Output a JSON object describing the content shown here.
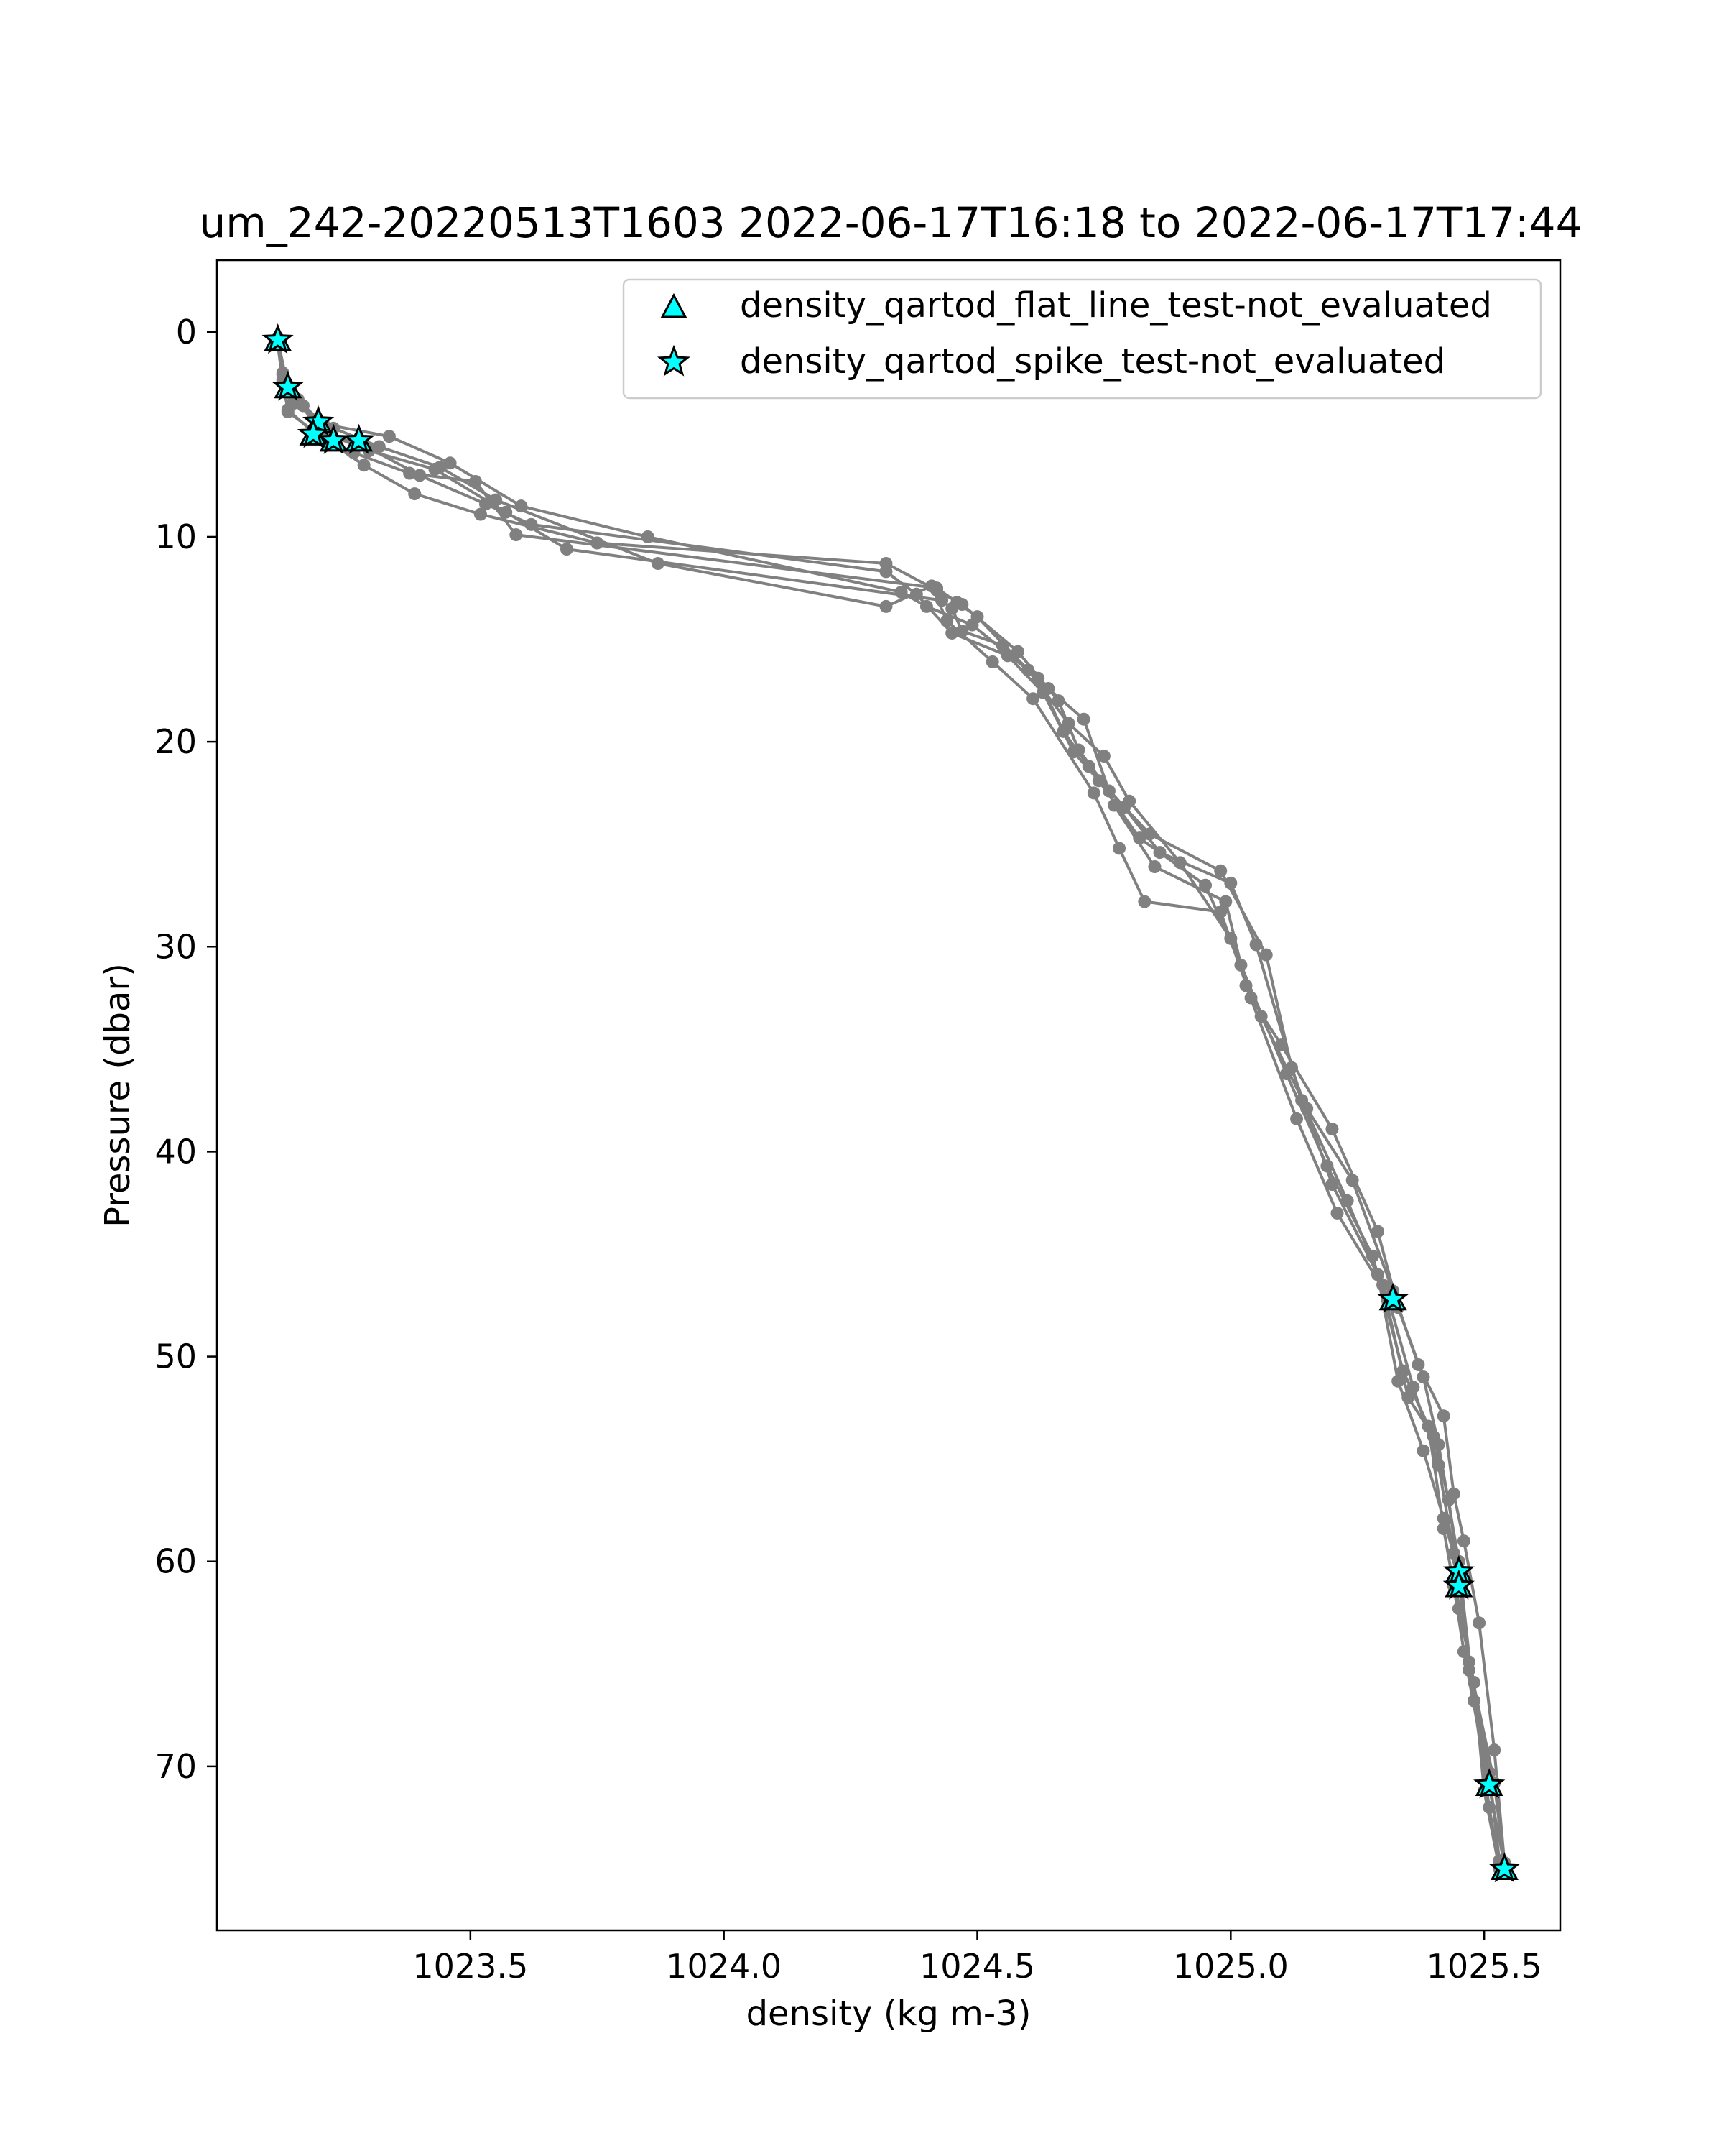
{
  "chart_data": {
    "type": "line",
    "title": "um_242-20220513T1603 2022-06-17T16:18 to 2022-06-17T17:44",
    "xlabel": "density (kg m-3)",
    "ylabel": "Pressure (dbar)",
    "xlim": [
      1023.0,
      1025.65
    ],
    "ylim": [
      78,
      -3.5
    ],
    "y_inverted": true,
    "xticks": [
      1023.5,
      1024.0,
      1024.5,
      1025.0,
      1025.5
    ],
    "xtick_labels": [
      "1023.5",
      "1024.0",
      "1024.5",
      "1025.0",
      "1025.5"
    ],
    "yticks": [
      0,
      10,
      20,
      30,
      40,
      50,
      60,
      70
    ],
    "ytick_labels": [
      "0",
      "10",
      "20",
      "30",
      "40",
      "50",
      "60",
      "70"
    ],
    "grid": false,
    "legend_position": "top-right",
    "colors": {
      "profile": "#808080",
      "marker_fill": "#00ffff",
      "marker_edge": "#000000"
    },
    "legend": [
      {
        "label": "density_qartod_flat_line_test-not_evaluated",
        "marker": "triangle"
      },
      {
        "label": "density_qartod_spike_test-not_evaluated",
        "marker": "star"
      }
    ],
    "series": [
      {
        "x": [
          1023.12,
          1023.13,
          1023.14,
          1023.2,
          1023.29,
          1023.39,
          1023.52,
          1023.75,
          1024.32,
          1024.42,
          1024.47,
          1024.58,
          1024.66,
          1024.7,
          1024.76,
          1024.84,
          1024.98,
          1025.07,
          1025.12,
          1025.2,
          1025.29,
          1025.33,
          1025.38,
          1025.42,
          1025.45,
          1025.47,
          1025.52,
          1025.54
        ],
        "y": [
          0.4,
          2.1,
          3.9,
          5.0,
          6.5,
          7.9,
          8.9,
          10.3,
          11.3,
          12.6,
          13.3,
          15.6,
          18.0,
          20.4,
          22.4,
          24.5,
          26.3,
          30.4,
          35.9,
          41.6,
          46.0,
          51.2,
          54.6,
          57.9,
          60.5,
          64.9,
          70.8,
          74.9
        ]
      },
      {
        "x": [
          1023.12,
          1023.13,
          1023.15,
          1023.21,
          1023.34,
          1023.46,
          1023.6,
          1023.85,
          1024.35,
          1024.4,
          1024.49,
          1024.62,
          1024.67,
          1024.72,
          1024.79,
          1024.86,
          1025.0,
          1025.05,
          1025.14,
          1025.23,
          1025.3,
          1025.35,
          1025.4,
          1025.43,
          1025.45,
          1025.47,
          1025.51,
          1025.53
        ],
        "y": [
          0.5,
          2.4,
          3.1,
          4.5,
          5.1,
          6.4,
          8.5,
          10.0,
          12.7,
          13.4,
          14.3,
          16.9,
          19.5,
          21.2,
          23.2,
          25.4,
          26.9,
          29.9,
          37.5,
          42.4,
          46.5,
          52.0,
          53.9,
          57.0,
          60.7,
          65.3,
          70.3,
          74.6
        ]
      },
      {
        "x": [
          1023.12,
          1023.14,
          1023.17,
          1023.22,
          1023.28,
          1023.4,
          1023.53,
          1023.62,
          1024.32,
          1024.38,
          1024.45,
          1024.56,
          1024.63,
          1024.69,
          1024.74,
          1024.82,
          1024.95,
          1025.02,
          1025.11,
          1025.19,
          1025.28,
          1025.34,
          1025.39,
          1025.42,
          1025.44,
          1025.46,
          1025.51,
          1025.54
        ],
        "y": [
          0.4,
          2.7,
          3.6,
          5.1,
          5.4,
          7.0,
          8.4,
          9.4,
          11.7,
          12.8,
          14.7,
          15.8,
          17.6,
          20.5,
          21.9,
          24.7,
          27.0,
          30.9,
          36.2,
          40.7,
          45.1,
          50.7,
          53.4,
          58.4,
          61.2,
          64.4,
          71.0,
          74.8
        ]
      },
      {
        "x": [
          1023.12,
          1023.13,
          1023.16,
          1023.2,
          1023.3,
          1023.43,
          1023.57,
          1023.69,
          1024.43,
          1024.45,
          1024.47,
          1024.55,
          1024.64,
          1024.71,
          1024.77,
          1024.85,
          1024.99,
          1025.03,
          1025.13,
          1025.21,
          1025.31,
          1025.36,
          1025.41,
          1025.44,
          1025.45,
          1025.48,
          1025.5,
          1025.53
        ],
        "y": [
          0.3,
          2.0,
          3.3,
          4.8,
          5.8,
          6.7,
          8.8,
          10.6,
          13.1,
          13.5,
          14.6,
          15.3,
          17.4,
          18.9,
          23.1,
          26.1,
          27.8,
          31.9,
          38.4,
          43.0,
          47.1,
          51.5,
          55.3,
          59.6,
          62.3,
          65.9,
          71.2,
          75.0
        ]
      },
      {
        "x": [
          1023.12,
          1023.13,
          1023.14,
          1023.19,
          1023.27,
          1023.38,
          1023.51,
          1023.59,
          1024.42,
          1024.46,
          1024.5,
          1024.6,
          1024.68,
          1024.75,
          1024.8,
          1024.9,
          1025.0,
          1025.06,
          1025.15,
          1025.24,
          1025.32,
          1025.37,
          1025.42,
          1025.44,
          1025.46,
          1025.49,
          1025.52,
          1025.54
        ],
        "y": [
          0.6,
          2.5,
          3.8,
          4.9,
          5.9,
          6.9,
          7.3,
          9.9,
          12.5,
          13.2,
          13.9,
          16.5,
          19.1,
          20.7,
          22.9,
          25.9,
          29.6,
          33.4,
          37.9,
          41.4,
          46.8,
          50.4,
          52.9,
          56.7,
          59.0,
          63.0,
          69.2,
          74.7
        ]
      },
      {
        "x": [
          1023.12,
          1023.13,
          1023.15,
          1023.23,
          1023.32,
          1023.44,
          1023.55,
          1023.87,
          1024.32,
          1024.41,
          1024.44,
          1024.53,
          1024.61,
          1024.73,
          1024.78,
          1024.83,
          1024.98,
          1025.04,
          1025.1,
          1025.2,
          1025.29,
          1025.33,
          1025.38,
          1025.41,
          1025.45,
          1025.48,
          1025.51,
          1025.53
        ],
        "y": [
          0.5,
          2.3,
          3.5,
          4.7,
          5.6,
          6.6,
          8.2,
          11.3,
          13.4,
          12.4,
          14.1,
          16.1,
          17.9,
          22.5,
          25.2,
          27.8,
          28.3,
          32.5,
          34.8,
          38.9,
          43.9,
          47.6,
          51.0,
          54.3,
          60.0,
          66.8,
          72.0,
          74.9
        ]
      }
    ],
    "flag_points": [
      {
        "x": 1023.12,
        "y": 0.4
      },
      {
        "x": 1023.14,
        "y": 2.7
      },
      {
        "x": 1023.2,
        "y": 4.4
      },
      {
        "x": 1023.19,
        "y": 5.0
      },
      {
        "x": 1023.23,
        "y": 5.3
      },
      {
        "x": 1023.28,
        "y": 5.3
      },
      {
        "x": 1025.32,
        "y": 47.2
      },
      {
        "x": 1025.45,
        "y": 60.5
      },
      {
        "x": 1025.45,
        "y": 61.2
      },
      {
        "x": 1025.51,
        "y": 70.9
      },
      {
        "x": 1025.54,
        "y": 75.0
      }
    ]
  }
}
